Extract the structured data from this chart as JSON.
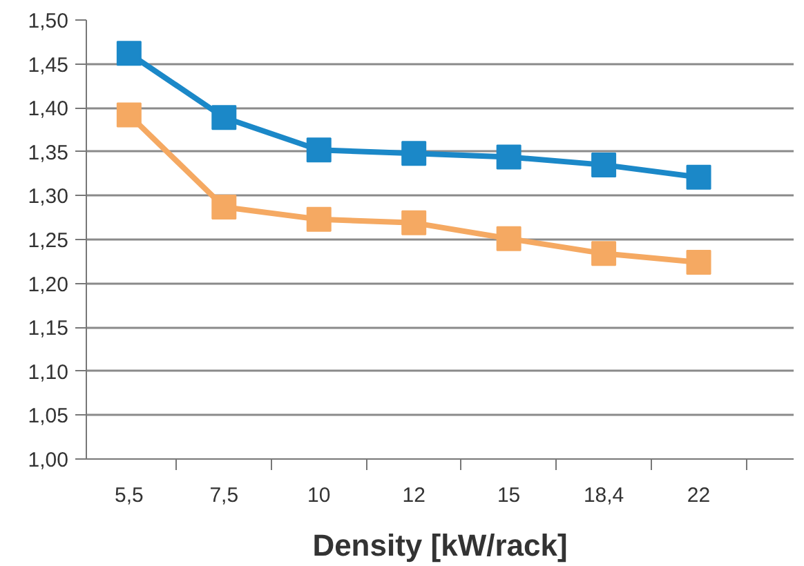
{
  "chart_data": {
    "type": "line",
    "xlabel": "Density [kW/rack]",
    "categories": [
      "5,5",
      "7,5",
      "10",
      "12",
      "15",
      "18,4",
      "22"
    ],
    "series": [
      {
        "color": "#1b88c8",
        "values": [
          1.462,
          1.389,
          1.352,
          1.348,
          1.344,
          1.335,
          1.321
        ]
      },
      {
        "color": "#f5a962",
        "values": [
          1.392,
          1.287,
          1.273,
          1.269,
          1.251,
          1.234,
          1.224
        ]
      }
    ],
    "ylim": [
      1.0,
      1.5
    ],
    "yticks": [
      {
        "value": 1.0,
        "label": "1,00"
      },
      {
        "value": 1.05,
        "label": "1,05"
      },
      {
        "value": 1.1,
        "label": "1,10"
      },
      {
        "value": 1.15,
        "label": "1,15"
      },
      {
        "value": 1.2,
        "label": "1,20"
      },
      {
        "value": 1.25,
        "label": "1,25"
      },
      {
        "value": 1.3,
        "label": "1,30"
      },
      {
        "value": 1.35,
        "label": "1,35"
      },
      {
        "value": 1.4,
        "label": "1,40"
      },
      {
        "value": 1.45,
        "label": "1,45"
      },
      {
        "value": 1.5,
        "label": "1,50"
      }
    ],
    "grid": "y",
    "marker": "square",
    "line_style": "solid"
  }
}
